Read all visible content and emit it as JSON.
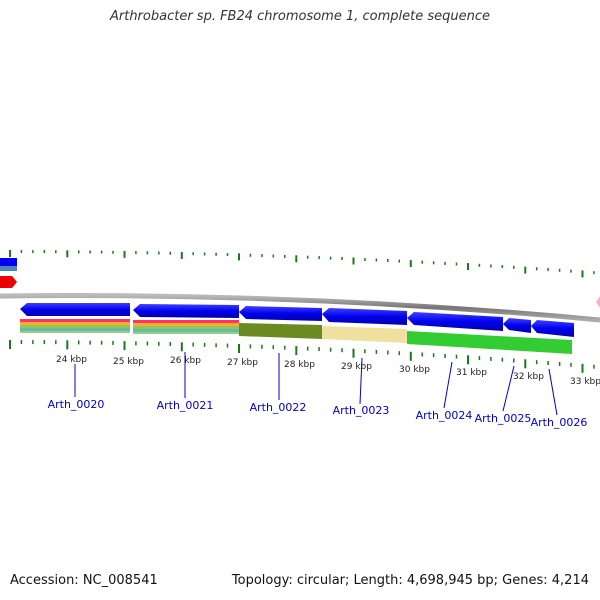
{
  "header": {
    "title": "Arthrobacter sp. FB24 chromosome 1, complete sequence"
  },
  "footer": {
    "accession": "Accession: NC_008541",
    "topology": "Topology: circular; Length: 4,698,945 bp; Genes: 4,214"
  },
  "map": {
    "ruler_labels": [
      "24 kbp",
      "25 kbp",
      "26 kbp",
      "27 kbp",
      "28 kbp",
      "29 kbp",
      "30 kbp",
      "31 kbp",
      "32 kbp",
      "33 kbp"
    ],
    "genes": [
      "Arth_0020",
      "Arth_0021",
      "Arth_0022",
      "Arth_0023",
      "Arth_0024",
      "Arth_0025",
      "Arth_0026"
    ]
  },
  "colors": {
    "backbone": "#888888",
    "cds": "#0000ee",
    "tick": "#1a7a1a",
    "label": "#0000cc",
    "red_feature": "#ee0000",
    "olive_band": "#6b8a22",
    "tan_band": "#f0e0a0",
    "green_band": "#33cc33"
  }
}
